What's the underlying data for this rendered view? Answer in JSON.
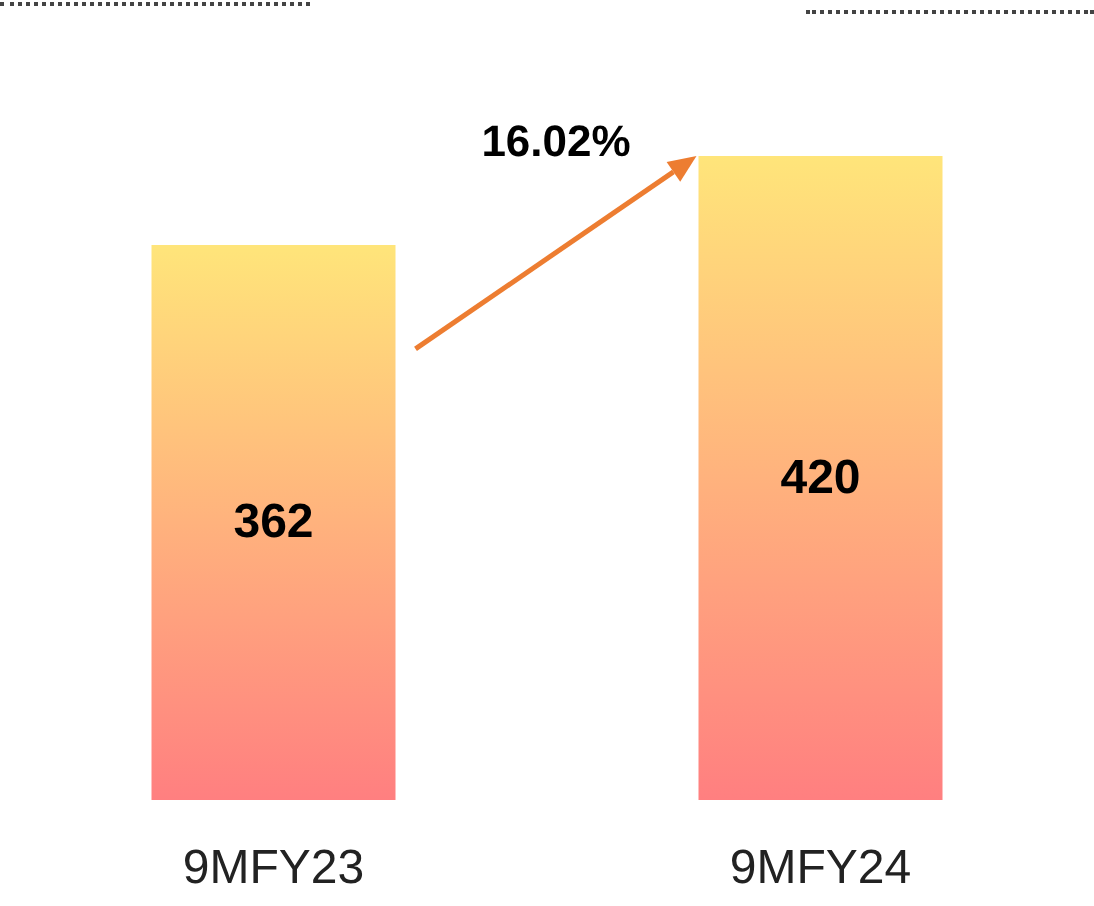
{
  "chart_data": {
    "type": "bar",
    "categories": [
      "9MFY23",
      "9MFY24"
    ],
    "values": [
      362,
      420
    ],
    "color": "#ffe57a",
    "data_labels": true,
    "annotations": [
      "16.02%"
    ]
  }
}
